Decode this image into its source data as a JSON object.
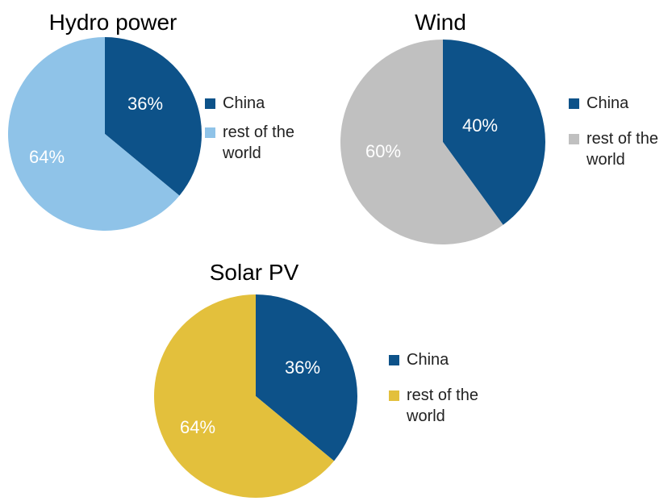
{
  "colors": {
    "china": "#0d5289",
    "hydro_rest": "#8fc3e8",
    "wind_rest": "#c0c0c0",
    "solar_rest": "#e3c03c"
  },
  "chart_data": [
    {
      "type": "pie",
      "title": "Hydro power",
      "slices": [
        {
          "label": "China",
          "value": 36,
          "display": "36%",
          "color": "#0d5289"
        },
        {
          "label": "rest of the world",
          "value": 64,
          "display": "64%",
          "color": "#8fc3e8"
        }
      ],
      "legend": [
        "China",
        "rest of the world"
      ]
    },
    {
      "type": "pie",
      "title": "Wind",
      "slices": [
        {
          "label": "China",
          "value": 40,
          "display": "40%",
          "color": "#0d5289"
        },
        {
          "label": "rest of the world",
          "value": 60,
          "display": "60%",
          "color": "#c0c0c0"
        }
      ],
      "legend": [
        "China",
        "rest of the world"
      ]
    },
    {
      "type": "pie",
      "title": "Solar PV",
      "slices": [
        {
          "label": "China",
          "value": 36,
          "display": "36%",
          "color": "#0d5289"
        },
        {
          "label": "rest of the world",
          "value": 64,
          "display": "64%",
          "color": "#e3c03c"
        }
      ],
      "legend": [
        "China",
        "rest of the world"
      ]
    }
  ]
}
